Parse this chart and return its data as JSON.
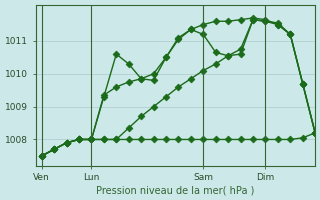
{
  "background_color": "#cce8e8",
  "grid_color": "#aacccc",
  "line_color": "#1a6b1a",
  "marker": "D",
  "ylabel_ticks": [
    1008,
    1009,
    1010,
    1011
  ],
  "ylim": [
    1007.2,
    1012.1
  ],
  "xlabel": "Pression niveau de la mer( hPa )",
  "xtick_labels": [
    "Ven",
    "Lun",
    "Sam",
    "Dim"
  ],
  "xtick_positions": [
    0,
    4,
    13,
    18
  ],
  "vline_positions": [
    0,
    4,
    13,
    18
  ],
  "total_points": 23,
  "series1": [
    1007.5,
    1007.7,
    1007.9,
    1008.0,
    1008.0,
    1009.3,
    1010.6,
    1010.3,
    1009.85,
    1009.8,
    1010.5,
    1011.1,
    1011.35,
    1011.2,
    1010.65,
    1010.55,
    1010.6,
    1011.65,
    1011.6,
    1011.55,
    1011.2,
    1009.7,
    1008.2
  ],
  "series2": [
    1007.5,
    1007.7,
    1007.9,
    1008.0,
    1008.0,
    1009.35,
    1009.6,
    1009.75,
    1009.85,
    1010.0,
    1010.5,
    1011.05,
    1011.35,
    1011.5,
    1011.6,
    1011.6,
    1011.65,
    1011.7,
    1011.65,
    1011.5,
    1011.2,
    1009.7,
    1008.2
  ],
  "series3": [
    1007.5,
    1007.7,
    1007.9,
    1008.0,
    1008.0,
    1008.0,
    1008.0,
    1008.35,
    1008.7,
    1009.0,
    1009.3,
    1009.6,
    1009.85,
    1010.1,
    1010.3,
    1010.55,
    1010.75,
    1011.65,
    1011.6,
    1011.5,
    1011.2,
    1009.7,
    1008.2
  ],
  "series4": [
    1007.5,
    1007.7,
    1007.9,
    1008.0,
    1008.0,
    1008.0,
    1008.0,
    1008.0,
    1008.0,
    1008.0,
    1008.0,
    1008.0,
    1008.0,
    1008.0,
    1008.0,
    1008.0,
    1008.0,
    1008.0,
    1008.0,
    1008.0,
    1008.0,
    1008.05,
    1008.2
  ]
}
